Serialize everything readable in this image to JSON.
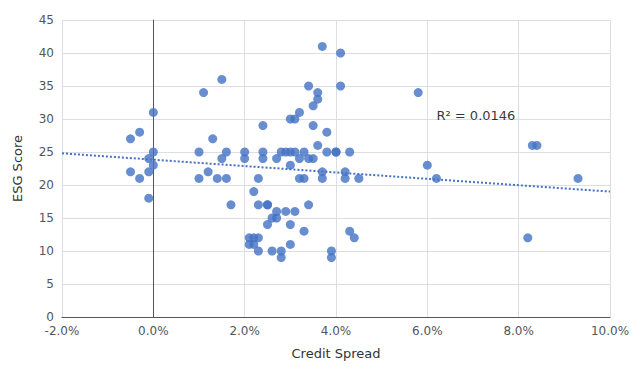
{
  "chart_data": {
    "type": "scatter",
    "xlabel": "Credit Spread",
    "ylabel": "ESG Score",
    "xlim": [
      -0.02,
      0.1
    ],
    "ylim": [
      0,
      45
    ],
    "xticks": [
      {
        "value": -0.02,
        "label": "-2.0%"
      },
      {
        "value": 0.0,
        "label": "0.0%"
      },
      {
        "value": 0.02,
        "label": "2.0%"
      },
      {
        "value": 0.04,
        "label": "4.0%"
      },
      {
        "value": 0.06,
        "label": "6.0%"
      },
      {
        "value": 0.08,
        "label": "8.0%"
      },
      {
        "value": 0.1,
        "label": "10.0%"
      }
    ],
    "yticks": [
      0,
      5,
      10,
      15,
      20,
      25,
      30,
      35,
      40,
      45
    ],
    "grid": true,
    "series": [
      {
        "type": "scatter",
        "color": "#4472C4",
        "marker": "circle",
        "x": [
          -0.005,
          -0.005,
          -0.003,
          -0.003,
          -0.001,
          -0.001,
          -0.001,
          0.0,
          0.0,
          0.0,
          0.01,
          0.01,
          0.011,
          0.012,
          0.013,
          0.014,
          0.015,
          0.015,
          0.016,
          0.016,
          0.017,
          0.02,
          0.02,
          0.021,
          0.021,
          0.022,
          0.022,
          0.022,
          0.023,
          0.023,
          0.023,
          0.023,
          0.024,
          0.024,
          0.024,
          0.025,
          0.025,
          0.025,
          0.026,
          0.026,
          0.027,
          0.027,
          0.027,
          0.028,
          0.028,
          0.028,
          0.029,
          0.029,
          0.03,
          0.03,
          0.03,
          0.03,
          0.03,
          0.031,
          0.031,
          0.031,
          0.032,
          0.032,
          0.032,
          0.033,
          0.033,
          0.033,
          0.034,
          0.034,
          0.034,
          0.035,
          0.035,
          0.035,
          0.036,
          0.036,
          0.036,
          0.037,
          0.037,
          0.037,
          0.038,
          0.038,
          0.039,
          0.039,
          0.04,
          0.04,
          0.041,
          0.041,
          0.042,
          0.042,
          0.043,
          0.043,
          0.044,
          0.045,
          0.058,
          0.06,
          0.062,
          0.082,
          0.083,
          0.084,
          0.093
        ],
        "values": [
          22,
          27,
          21,
          28,
          18,
          22,
          24,
          23,
          25,
          31,
          21,
          25,
          34,
          22,
          27,
          21,
          24,
          36,
          21,
          25,
          17,
          24,
          25,
          11,
          12,
          11,
          12,
          19,
          10,
          12,
          17,
          21,
          24,
          25,
          29,
          14,
          17,
          17,
          10,
          15,
          15,
          16,
          24,
          9,
          10,
          25,
          16,
          25,
          11,
          14,
          23,
          25,
          30,
          16,
          25,
          30,
          21,
          24,
          31,
          13,
          21,
          25,
          17,
          24,
          35,
          24,
          29,
          32,
          26,
          33,
          34,
          21,
          22,
          41,
          25,
          28,
          9,
          10,
          25,
          25,
          35,
          40,
          21,
          22,
          25,
          13,
          12,
          21,
          34,
          23,
          21,
          12,
          26,
          26,
          21
        ]
      },
      {
        "type": "line",
        "color": "#4472C4",
        "line_style": "dotted",
        "x": [
          -0.02,
          0.1
        ],
        "values": [
          24.8,
          19.0
        ]
      }
    ],
    "annotations": [
      {
        "text": "R² = 0.0146",
        "x": 0.062,
        "y": 29.5
      }
    ]
  }
}
